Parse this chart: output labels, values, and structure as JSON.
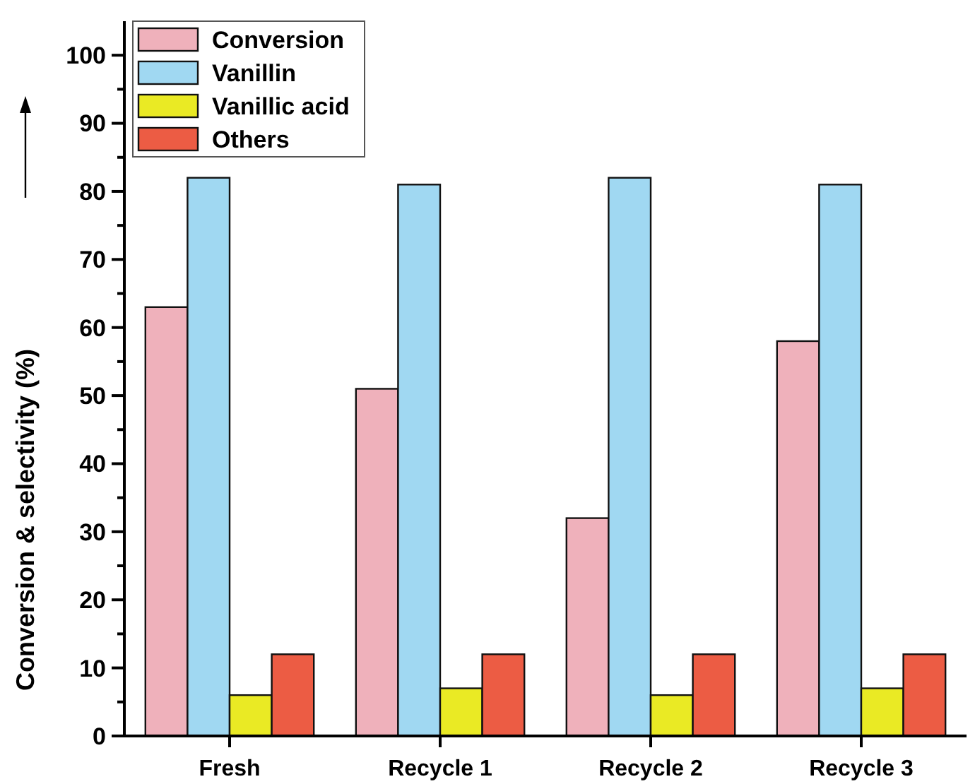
{
  "chart_data": {
    "type": "bar",
    "ylabel": "Conversion & selectivity (%)",
    "categories": [
      "Fresh",
      "Recycle 1",
      "Recycle 2",
      "Recycle 3"
    ],
    "series": [
      {
        "name": "Conversion",
        "color": "#efb1bb",
        "values": [
          63,
          51,
          32,
          58
        ]
      },
      {
        "name": "Vanillin",
        "color": "#a0d8f2",
        "values": [
          82,
          81,
          82,
          81
        ]
      },
      {
        "name": "Vanillic acid",
        "color": "#eaea24",
        "values": [
          6,
          7,
          6,
          7
        ]
      },
      {
        "name": "Others",
        "color": "#ec5c44",
        "values": [
          12,
          12,
          12,
          12
        ]
      }
    ],
    "ylim": [
      0,
      105
    ],
    "yticks": [
      0,
      {
        "value": 5,
        "label": null
      },
      10,
      {
        "value": 15,
        "label": null
      },
      20,
      {
        "value": 25,
        "label": null
      },
      30,
      {
        "value": 35,
        "label": null
      },
      40,
      {
        "value": 45,
        "label": null
      },
      50,
      {
        "value": 55,
        "label": null
      },
      60,
      {
        "value": 65,
        "label": null
      },
      70,
      {
        "value": 75,
        "label": null
      },
      80,
      {
        "value": 85,
        "label": null
      },
      90,
      {
        "value": 95,
        "label": null
      },
      100
    ],
    "legend": "top left",
    "grid": false
  }
}
